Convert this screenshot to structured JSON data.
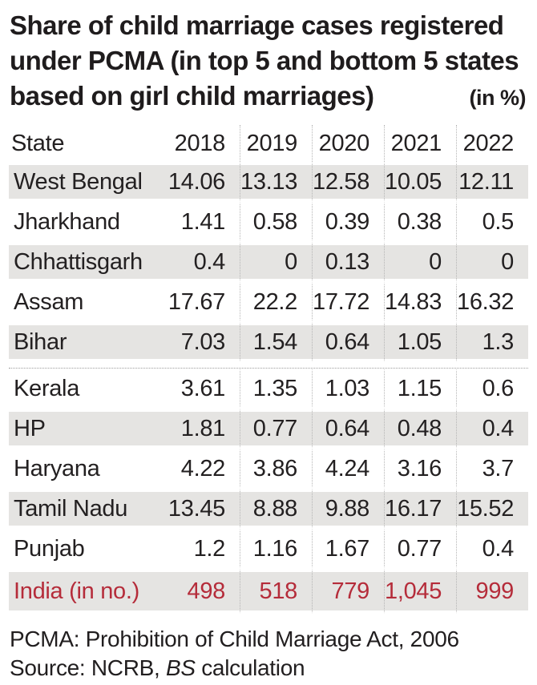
{
  "title": {
    "line1": "Share of child marriage cases registered",
    "line2": "under PCMA (in top 5 and bottom 5 states",
    "line3": "based on girl child marriages)",
    "unit": "(in %)"
  },
  "table": {
    "state_header": "State",
    "years": [
      "2018",
      "2019",
      "2020",
      "2021",
      "2022"
    ],
    "rows": [
      {
        "state": "West Bengal",
        "values": [
          "14.06",
          "13.13",
          "12.58",
          "10.05",
          "12.11"
        ]
      },
      {
        "state": "Jharkhand",
        "values": [
          "1.41",
          "0.58",
          "0.39",
          "0.38",
          "0.5"
        ]
      },
      {
        "state": "Chhattisgarh",
        "values": [
          "0.4",
          "0",
          "0.13",
          "0",
          "0"
        ]
      },
      {
        "state": "Assam",
        "values": [
          "17.67",
          "22.2",
          "17.72",
          "14.83",
          "16.32"
        ]
      },
      {
        "state": "Bihar",
        "values": [
          "7.03",
          "1.54",
          "0.64",
          "1.05",
          "1.3"
        ]
      },
      {
        "state": "Kerala",
        "values": [
          "3.61",
          "1.35",
          "1.03",
          "1.15",
          "0.6"
        ]
      },
      {
        "state": "HP",
        "values": [
          "1.81",
          "0.77",
          "0.64",
          "0.48",
          "0.4"
        ]
      },
      {
        "state": "Haryana",
        "values": [
          "4.22",
          "3.86",
          "4.24",
          "3.16",
          "3.7"
        ]
      },
      {
        "state": "Tamil Nadu",
        "values": [
          "13.45",
          "8.88",
          "9.88",
          "16.17",
          "15.52"
        ]
      },
      {
        "state": "Punjab",
        "values": [
          "1.2",
          "1.16",
          "1.67",
          "0.77",
          "0.4"
        ]
      }
    ],
    "india_row": {
      "state": "India (in no.)",
      "values": [
        "498",
        "518",
        "779",
        "1,045",
        "999"
      ]
    }
  },
  "footnotes": {
    "pcma": "PCMA: Prohibition of Child Marriage Act, 2006",
    "source_prefix": "Source: NCRB, ",
    "source_italic": "BS",
    "source_suffix": " calculation"
  },
  "colors": {
    "accent_red": "#b52c3a",
    "stripe_gray": "#e5e4e2",
    "text": "#232021"
  },
  "chart_data": {
    "type": "table",
    "title": "Share of child marriage cases registered under PCMA (in top 5 and bottom 5 states based on girl child marriages)",
    "unit": "(in %)",
    "columns": [
      "State",
      "2018",
      "2019",
      "2020",
      "2021",
      "2022"
    ],
    "rows": [
      [
        "West Bengal",
        14.06,
        13.13,
        12.58,
        10.05,
        12.11
      ],
      [
        "Jharkhand",
        1.41,
        0.58,
        0.39,
        0.38,
        0.5
      ],
      [
        "Chhattisgarh",
        0.4,
        0,
        0.13,
        0,
        0
      ],
      [
        "Assam",
        17.67,
        22.2,
        17.72,
        14.83,
        16.32
      ],
      [
        "Bihar",
        7.03,
        1.54,
        0.64,
        1.05,
        1.3
      ],
      [
        "Kerala",
        3.61,
        1.35,
        1.03,
        1.15,
        0.6
      ],
      [
        "HP",
        1.81,
        0.77,
        0.64,
        0.48,
        0.4
      ],
      [
        "Haryana",
        4.22,
        3.86,
        4.24,
        3.16,
        3.7
      ],
      [
        "Tamil Nadu",
        13.45,
        8.88,
        9.88,
        16.17,
        15.52
      ],
      [
        "Punjab",
        1.2,
        1.16,
        1.67,
        0.77,
        0.4
      ],
      [
        "India (in no.)",
        498,
        518,
        779,
        1045,
        999
      ]
    ],
    "group_break_after_row": 4,
    "notes": [
      "PCMA: Prohibition of Child Marriage Act, 2006",
      "Source: NCRB, BS calculation"
    ]
  }
}
